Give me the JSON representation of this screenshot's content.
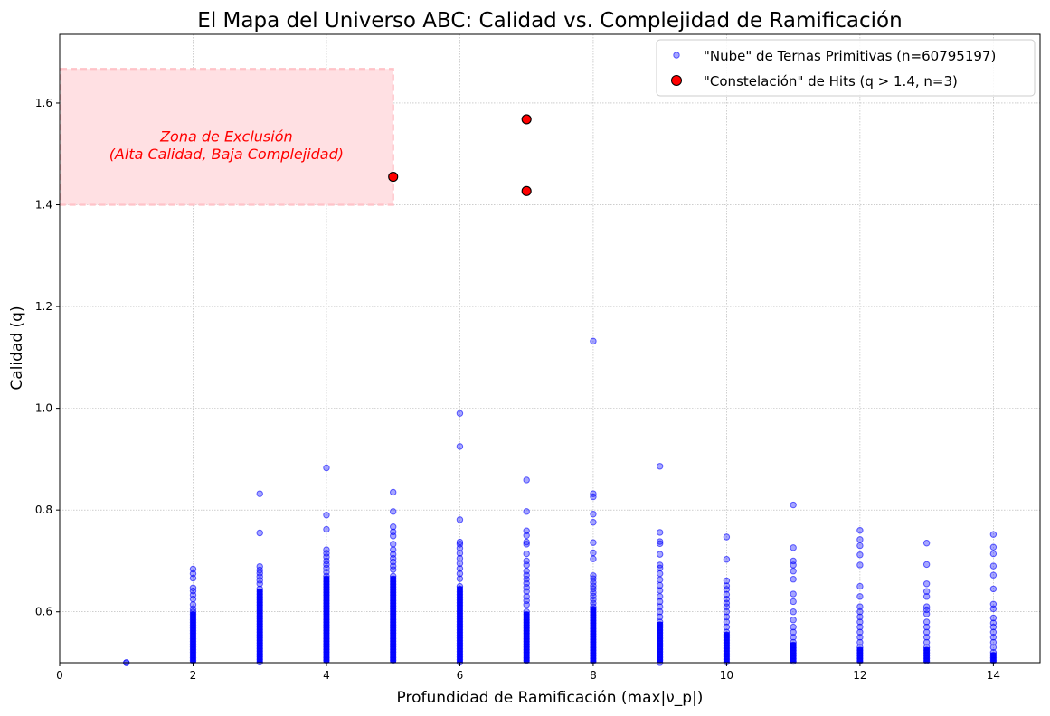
{
  "chart_data": {
    "type": "scatter",
    "title": "El Mapa del Universo ABC: Calidad vs. Complejidad de Ramificación",
    "xlabel": "Profundidad de Ramificación (max|ν_p|)",
    "ylabel": "Calidad (q)",
    "xlim": [
      0,
      14.7
    ],
    "ylim": [
      0.5,
      1.735
    ],
    "x_ticks": [
      0,
      2,
      4,
      6,
      8,
      10,
      12,
      14
    ],
    "y_ticks": [
      0.6,
      0.8,
      1.0,
      1.2,
      1.4,
      1.6
    ],
    "x_tick_labels": [
      "0",
      "2",
      "4",
      "6",
      "8",
      "10",
      "12",
      "14"
    ],
    "y_tick_labels": [
      "0.6",
      "0.8",
      "1.0",
      "1.2",
      "1.4",
      "1.6"
    ],
    "grid": true,
    "legend_position": "top-right",
    "exclusion_zone": {
      "x_range": [
        0,
        5
      ],
      "y_range": [
        1.4,
        1.667
      ],
      "label_line1": "Zona de Exclusión",
      "label_line2": "(Alta Calidad, Baja Complejidad)",
      "color": "#ffe0e3"
    },
    "series": [
      {
        "name": "\"Nube\" de Ternas Primitivas (n=60795197)",
        "color": "#0000ff",
        "columns": [
          {
            "x": 1,
            "dense_top": 0.5,
            "outliers": []
          },
          {
            "x": 2,
            "dense_top": 0.6,
            "outliers": [
              0.684,
              0.675,
              0.666,
              0.647,
              0.641,
              0.633,
              0.625,
              0.614,
              0.606
            ]
          },
          {
            "x": 3,
            "dense_top": 0.645,
            "outliers": [
              0.832,
              0.755,
              0.689,
              0.682,
              0.676,
              0.669,
              0.662,
              0.655
            ]
          },
          {
            "x": 4,
            "dense_top": 0.67,
            "outliers": [
              0.883,
              0.79,
              0.762,
              0.722,
              0.715,
              0.708,
              0.7,
              0.693,
              0.686,
              0.678
            ]
          },
          {
            "x": 5,
            "dense_top": 0.67,
            "outliers": [
              0.835,
              0.797,
              0.767,
              0.757,
              0.749,
              0.733,
              0.722,
              0.713,
              0.705,
              0.698,
              0.69,
              0.683
            ]
          },
          {
            "x": 6,
            "dense_top": 0.65,
            "outliers": [
              0.99,
              0.925,
              0.781,
              0.737,
              0.733,
              0.725,
              0.715,
              0.705,
              0.695,
              0.685,
              0.675,
              0.665
            ]
          },
          {
            "x": 7,
            "dense_top": 0.6,
            "outliers": [
              0.859,
              0.797,
              0.759,
              0.75,
              0.737,
              0.733,
              0.714,
              0.7,
              0.692,
              0.68,
              0.672,
              0.664,
              0.656,
              0.648,
              0.64,
              0.63,
              0.622,
              0.614
            ]
          },
          {
            "x": 8,
            "dense_top": 0.61,
            "outliers": [
              1.132,
              0.832,
              0.826,
              0.792,
              0.776,
              0.736,
              0.716,
              0.704,
              0.671,
              0.665,
              0.658,
              0.651,
              0.645,
              0.638,
              0.631,
              0.624,
              0.617
            ]
          },
          {
            "x": 9,
            "dense_top": 0.58,
            "outliers": [
              0.886,
              0.756,
              0.738,
              0.734,
              0.713,
              0.692,
              0.686,
              0.675,
              0.663,
              0.652,
              0.642,
              0.63,
              0.62,
              0.61,
              0.6,
              0.59
            ]
          },
          {
            "x": 10,
            "dense_top": 0.56,
            "outliers": [
              0.747,
              0.703,
              0.661,
              0.651,
              0.644,
              0.634,
              0.625,
              0.617,
              0.61,
              0.6,
              0.59,
              0.58,
              0.57
            ]
          },
          {
            "x": 11,
            "dense_top": 0.54,
            "outliers": [
              0.81,
              0.726,
              0.7,
              0.692,
              0.68,
              0.664,
              0.635,
              0.62,
              0.6,
              0.584,
              0.57,
              0.56,
              0.55
            ]
          },
          {
            "x": 12,
            "dense_top": 0.53,
            "outliers": [
              0.76,
              0.742,
              0.73,
              0.712,
              0.692,
              0.65,
              0.63,
              0.61,
              0.6,
              0.59,
              0.58,
              0.57,
              0.56,
              0.55,
              0.54
            ]
          },
          {
            "x": 13,
            "dense_top": 0.53,
            "outliers": [
              0.735,
              0.693,
              0.655,
              0.64,
              0.63,
              0.61,
              0.604,
              0.596,
              0.58,
              0.57,
              0.56,
              0.55,
              0.54
            ]
          },
          {
            "x": 14,
            "dense_top": 0.52,
            "outliers": [
              0.752,
              0.727,
              0.714,
              0.69,
              0.672,
              0.645,
              0.615,
              0.606,
              0.588,
              0.578,
              0.57,
              0.56,
              0.55,
              0.54,
              0.53
            ]
          }
        ]
      },
      {
        "name": "\"Constelación\" de Hits (q > 1.4, n=3)",
        "color": "#ff0000",
        "points": [
          {
            "x": 5,
            "y": 1.455
          },
          {
            "x": 7,
            "y": 1.568
          },
          {
            "x": 7,
            "y": 1.427
          }
        ]
      }
    ]
  }
}
